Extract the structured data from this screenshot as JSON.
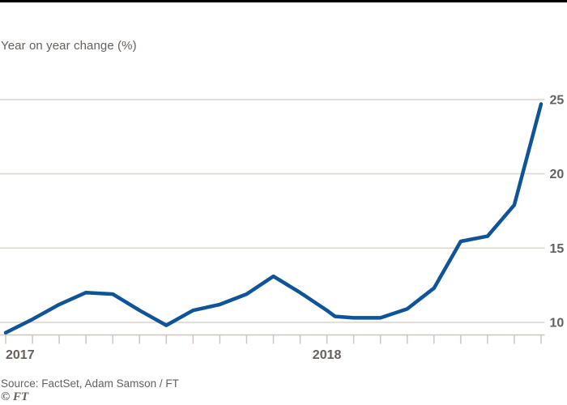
{
  "header": {
    "subtitle": "Year on year change (%)"
  },
  "footer": {
    "source": "Source: FactSet, Adam Samson / FT",
    "copyright": "© FT"
  },
  "colors": {
    "line": "#0f5499",
    "gridline": "#e0d6cc",
    "axis": "#cfc5ba",
    "text": "#66605c",
    "top_rule": "#000000",
    "background": "#ffffff"
  },
  "chart_data": {
    "type": "line",
    "ylabel": "Year on year change (%)",
    "unit": "%",
    "x_axis": {
      "tick_unit": "month",
      "tick_count": 21,
      "year_labels": [
        {
          "label": "2017",
          "month_index": 0,
          "align": "start"
        },
        {
          "label": "2018",
          "month_index": 12,
          "align": "middle"
        }
      ]
    },
    "y_axis": {
      "ticks": [
        10,
        15,
        20,
        25
      ],
      "ylim": [
        9.2,
        25.3
      ],
      "side": "right",
      "grid": true
    },
    "series": [
      {
        "name": "Year on year change (%)",
        "points": [
          [
            0,
            9.3
          ],
          [
            1,
            10.2
          ],
          [
            2,
            11.2
          ],
          [
            3,
            12.0
          ],
          [
            4,
            11.9
          ],
          [
            5,
            10.8
          ],
          [
            6,
            9.8
          ],
          [
            7,
            10.8
          ],
          [
            8,
            11.2
          ],
          [
            9,
            11.9
          ],
          [
            10,
            13.1
          ],
          [
            11,
            12.0
          ],
          [
            12,
            10.8
          ],
          [
            12.3,
            10.4
          ],
          [
            13,
            10.3
          ],
          [
            14,
            10.3
          ],
          [
            15,
            10.9
          ],
          [
            16,
            12.3
          ],
          [
            17,
            15.45
          ],
          [
            18,
            15.8
          ],
          [
            19,
            17.9
          ],
          [
            20,
            24.7
          ]
        ]
      }
    ]
  }
}
